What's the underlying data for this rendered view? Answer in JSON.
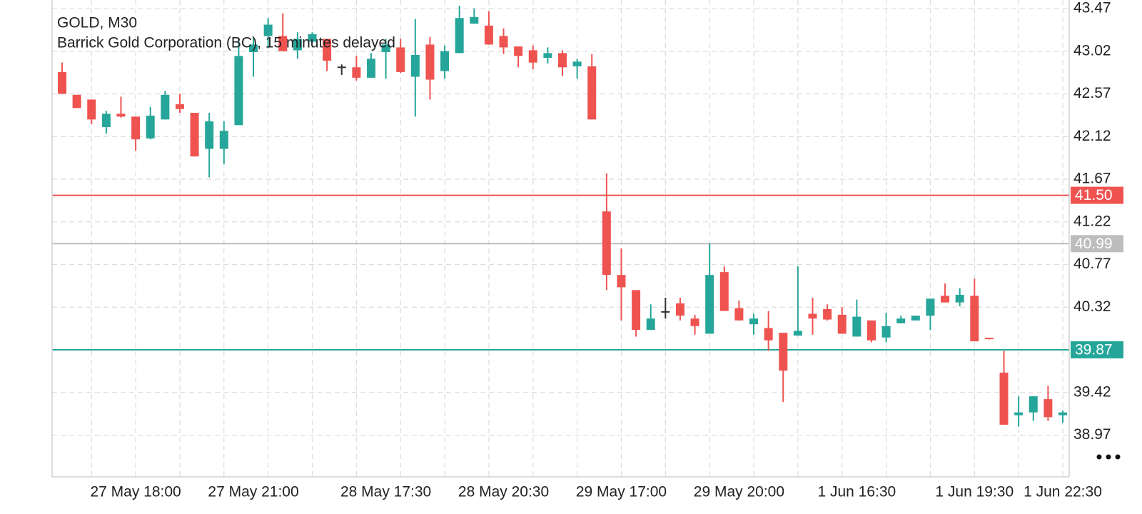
{
  "chart_data": {
    "type": "candlestick",
    "title": "GOLD, M30",
    "subtitle": "Barrick Gold Corporation (BC), 15 minutes delayed",
    "categories": [
      null,
      null,
      null,
      null,
      null,
      "27 May 18:00",
      null,
      null,
      null,
      null,
      null,
      null,
      null,
      "27 May 21:00",
      null,
      null,
      null,
      null,
      null,
      null,
      null,
      null,
      "28 May 17:30",
      null,
      null,
      null,
      null,
      null,
      null,
      null,
      "28 May 20:30",
      null,
      null,
      null,
      null,
      null,
      null,
      null,
      "29 May 17:00",
      null,
      null,
      null,
      null,
      null,
      null,
      null,
      "29 May 20:00",
      null,
      null,
      null,
      null,
      null,
      null,
      null,
      "1 Jun 16:30",
      null,
      null,
      null,
      null,
      null,
      null,
      null,
      "1 Jun 19:30",
      null,
      null,
      null,
      null,
      null,
      "1 Jun 22:30"
    ],
    "open": [
      42.8,
      42.56,
      42.51,
      42.22,
      42.36,
      42.33,
      42.1,
      42.3,
      42.46,
      42.37,
      41.99,
      41.99,
      42.24,
      43.01,
      43.18,
      43.18,
      43.03,
      43.12,
      43.15,
      42.85,
      42.85,
      42.74,
      43.01,
      43.06,
      42.75,
      43.09,
      42.81,
      43.0,
      43.31,
      43.29,
      43.18,
      43.07,
      43.03,
      42.95,
      43.0,
      42.86,
      42.86,
      41.33,
      40.66,
      40.5,
      40.08,
      40.27,
      40.36,
      40.2,
      40.04,
      40.69,
      40.31,
      40.14,
      40.1,
      40.05,
      40.02,
      40.25,
      40.3,
      40.24,
      40.01,
      40.18,
      40.0,
      40.15,
      40.18,
      40.23,
      40.44,
      40.37,
      40.44,
      39.99,
      39.63,
      39.18,
      39.21,
      39.35,
      39.18
    ],
    "high": [
      42.9,
      42.56,
      42.51,
      42.39,
      42.54,
      42.33,
      42.43,
      42.6,
      42.57,
      42.37,
      42.37,
      42.28,
      43.15,
      43.16,
      43.37,
      43.42,
      43.22,
      43.22,
      43.15,
      42.88,
      42.97,
      43.0,
      43.15,
      43.15,
      43.36,
      43.17,
      43.08,
      43.5,
      43.47,
      43.44,
      43.26,
      43.07,
      43.08,
      43.06,
      43.03,
      42.94,
      42.99,
      41.73,
      40.94,
      40.5,
      40.35,
      40.42,
      40.42,
      40.24,
      40.99,
      40.75,
      40.39,
      40.25,
      40.28,
      40.05,
      40.75,
      40.42,
      40.35,
      40.32,
      40.4,
      40.18,
      40.26,
      40.23,
      40.23,
      40.41,
      40.57,
      40.52,
      40.62,
      39.99,
      39.86,
      39.38,
      39.38,
      39.49,
      39.23
    ],
    "low": [
      42.57,
      42.42,
      42.25,
      42.15,
      42.32,
      41.97,
      42.09,
      42.3,
      42.37,
      41.91,
      41.69,
      41.83,
      42.24,
      42.75,
      43.05,
      43.02,
      42.94,
      43.11,
      42.81,
      42.77,
      42.71,
      42.74,
      42.73,
      42.79,
      42.33,
      42.51,
      42.73,
      43.0,
      43.31,
      43.09,
      42.99,
      42.85,
      42.83,
      42.89,
      42.76,
      42.73,
      42.3,
      40.5,
      40.18,
      40.01,
      40.08,
      40.2,
      40.18,
      40.03,
      40.04,
      40.28,
      40.18,
      40.03,
      39.86,
      39.32,
      40.02,
      40.03,
      40.18,
      40.04,
      40.01,
      39.95,
      39.95,
      40.15,
      40.18,
      40.08,
      40.37,
      40.33,
      39.96,
      39.98,
      39.08,
      39.06,
      39.12,
      39.12,
      39.1
    ],
    "close": [
      42.57,
      42.42,
      42.3,
      42.36,
      42.33,
      42.09,
      42.34,
      42.56,
      42.41,
      41.91,
      42.28,
      42.18,
      42.97,
      43.09,
      43.3,
      43.02,
      43.15,
      43.2,
      42.92,
      42.85,
      42.74,
      42.94,
      43.09,
      42.8,
      42.98,
      42.72,
      43.02,
      43.37,
      43.38,
      43.09,
      43.06,
      42.97,
      42.9,
      43.0,
      42.85,
      42.91,
      42.3,
      40.66,
      40.53,
      40.08,
      40.2,
      40.27,
      40.23,
      40.12,
      40.66,
      40.28,
      40.18,
      40.2,
      39.97,
      39.65,
      40.07,
      40.2,
      40.19,
      40.04,
      40.22,
      39.97,
      40.12,
      40.2,
      40.23,
      40.41,
      40.37,
      40.45,
      39.96,
      39.98,
      39.08,
      39.21,
      39.38,
      39.16,
      39.21
    ],
    "up_color": "#26a69a",
    "down_color": "#ef5350",
    "neutral_color": "#333333",
    "ylim": [
      38.53,
      43.56
    ],
    "yticks": [
      43.47,
      43.02,
      42.57,
      42.12,
      41.67,
      41.22,
      40.77,
      40.32,
      39.42,
      38.97
    ],
    "grid": true,
    "price_lines": [
      {
        "value": 41.5,
        "label": "41.50",
        "color": "#ef5350"
      },
      {
        "value": 40.99,
        "label": "40.99",
        "color": "#bdbdbd"
      },
      {
        "value": 39.87,
        "label": "39.87",
        "color": "#26a69a"
      }
    ]
  }
}
